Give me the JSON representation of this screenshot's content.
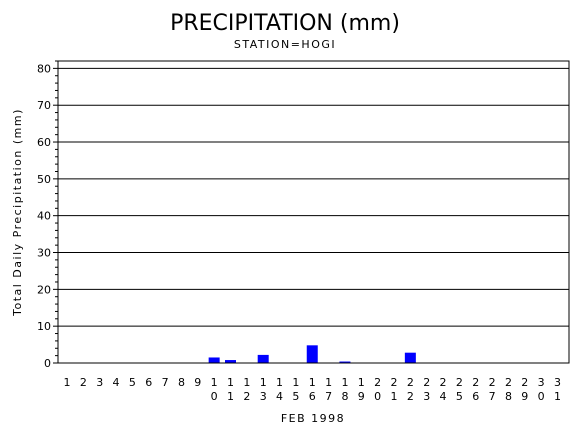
{
  "chart_data": {
    "type": "bar",
    "title": "PRECIPITATION (mm)",
    "subtitle": "STATION=HOGI",
    "xlabel": "FEB 1998",
    "ylabel": "Total Daily Precipitation (mm)",
    "ylim": [
      0,
      82
    ],
    "yticks": [
      0,
      10,
      20,
      30,
      40,
      50,
      60,
      70,
      80
    ],
    "grid": true,
    "bar_color": "#0000ff",
    "categories": [
      "1",
      "2",
      "3",
      "4",
      "5",
      "6",
      "7",
      "8",
      "9",
      "10",
      "11",
      "12",
      "13",
      "14",
      "15",
      "16",
      "17",
      "18",
      "19",
      "20",
      "21",
      "22",
      "23",
      "24",
      "25",
      "26",
      "27",
      "28",
      "29",
      "30",
      "31"
    ],
    "values": [
      0,
      0,
      0,
      0,
      0,
      0,
      0,
      0,
      0,
      1.5,
      0.8,
      0,
      2.2,
      0,
      0,
      4.8,
      0,
      0.4,
      0,
      0,
      0,
      2.8,
      0,
      0,
      0,
      0,
      0,
      0,
      0,
      0,
      0
    ]
  }
}
